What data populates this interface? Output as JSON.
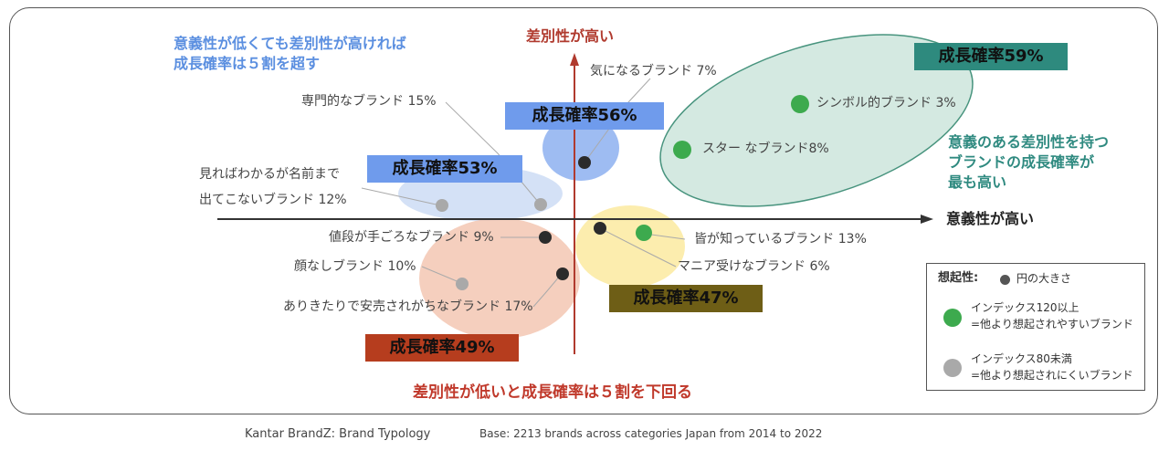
{
  "axes": {
    "y_label": "差別性が高い",
    "x_label": "意義性が高い"
  },
  "notes": {
    "top_left_line1": "意義性が低くても差別性が高ければ",
    "top_left_line2": "成長確率は５割を超す",
    "right_line1": "意義のある差別性を持つ",
    "right_line2": "ブランドの成長確率が",
    "right_line3": "最も高い",
    "bottom": "差別性が低いと成長確率は５割を下回る"
  },
  "groups": [
    {
      "label": "成長確率56%",
      "color": "#7ea6ee"
    },
    {
      "label": "成長確率53%",
      "color": "#c9d9f4"
    },
    {
      "label": "成長確率59%",
      "color": "#d2e8e0"
    },
    {
      "label": "成長確率49%",
      "color": "#f3c3ae"
    },
    {
      "label": "成長確率47%",
      "color": "#fbeaa0"
    }
  ],
  "brands": [
    {
      "name": "気になるブランド 7%",
      "type": "dark"
    },
    {
      "name": "専門的なブランド 15%",
      "type": "light"
    },
    {
      "name": "見ればわかるが名前まで",
      "type": ""
    },
    {
      "name": "出てこないブランド 12%",
      "type": "light"
    },
    {
      "name": "シンボル的ブランド 3%",
      "type": "green"
    },
    {
      "name": "スター なブランド8%",
      "type": "green"
    },
    {
      "name": "値段が手ごろなブランド 9%",
      "type": "dark"
    },
    {
      "name": "顔なしブランド 10%",
      "type": "light"
    },
    {
      "name": "ありきたりで安売されがちなブランド 17%",
      "type": "dark"
    },
    {
      "name": "皆が知っているブランド 13%",
      "type": "green"
    },
    {
      "name": "マニア受けなブランド 6%",
      "type": "dark"
    }
  ],
  "legend": {
    "title": "想起性:",
    "size_text": "円の大きさ",
    "green_line1": "インデックス120以上",
    "green_line2": "=他より想起されやすいブランド",
    "gray_line1": "インデックス80未満",
    "gray_line2": "=他より想起されにくいブランド",
    "colors": {
      "dark": "#2b2b2b",
      "green": "#3daa4e",
      "light": "#a9a9a9"
    }
  },
  "footer": {
    "source": "Kantar BrandZ:  Brand Typology",
    "base": "Base: 2213 brands across categories Japan from 2014 to 2022"
  },
  "colors": {
    "axis_y": "#b03a2e",
    "axis_x": "#333333"
  }
}
